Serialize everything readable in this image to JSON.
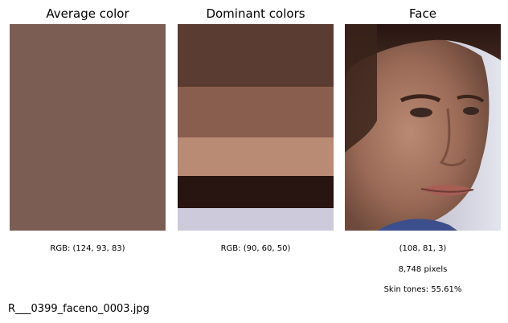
{
  "panels": {
    "average": {
      "title": "Average color",
      "color": "#7c5d53",
      "caption": "RGB: (124, 93, 83)"
    },
    "dominant": {
      "title": "Dominant colors",
      "stripes": [
        {
          "color": "#5a3c32",
          "share": 0.305
        },
        {
          "color": "#8a5e4e",
          "share": 0.242
        },
        {
          "color": "#b98a74",
          "share": 0.187
        },
        {
          "color": "#281411",
          "share": 0.156
        },
        {
          "color": "#cdcadc",
          "share": 0.11
        }
      ],
      "caption": "RGB: (90, 60, 50)"
    },
    "face": {
      "title": "Face",
      "caption": "(108, 81, 3)",
      "pixels": "8,748 pixels",
      "skin": "Skin tones: 55.61%"
    }
  },
  "filename": "R___0399_faceno_0003.jpg"
}
